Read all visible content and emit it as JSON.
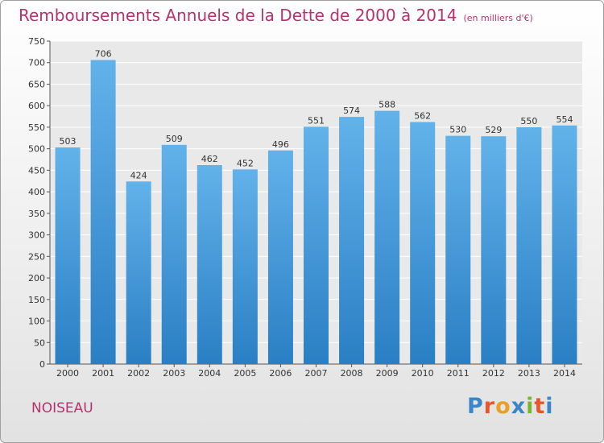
{
  "header": {
    "title": "Remboursements Annuels de la Dette de 2000 à 2014",
    "unit": "(en milliers d'€)"
  },
  "footer": {
    "city": "NOISEAU",
    "logo": "Proxiti"
  },
  "colors": {
    "title": "#b5326f",
    "bar_top": "#62b2ea",
    "bar_bottom": "#2a7fc4",
    "logo_letters": [
      "#3a86c8",
      "#e8562a",
      "#e8a02a",
      "#3a86c8",
      "#7ab52a",
      "#e8562a",
      "#3a86c8"
    ]
  },
  "chart_data": {
    "type": "bar",
    "categories": [
      "2000",
      "2001",
      "2002",
      "2003",
      "2004",
      "2005",
      "2006",
      "2007",
      "2008",
      "2009",
      "2010",
      "2011",
      "2012",
      "2013",
      "2014"
    ],
    "values": [
      503,
      706,
      424,
      509,
      462,
      452,
      496,
      551,
      574,
      588,
      562,
      530,
      529,
      550,
      554
    ],
    "title": "Remboursements Annuels de la Dette de 2000 à 2014",
    "xlabel": "",
    "ylabel": "",
    "ylim": [
      0,
      750
    ],
    "yticks": [
      0,
      50,
      100,
      150,
      200,
      250,
      300,
      350,
      400,
      450,
      500,
      550,
      600,
      650,
      700,
      750
    ],
    "grid": true,
    "data_labels": true
  }
}
